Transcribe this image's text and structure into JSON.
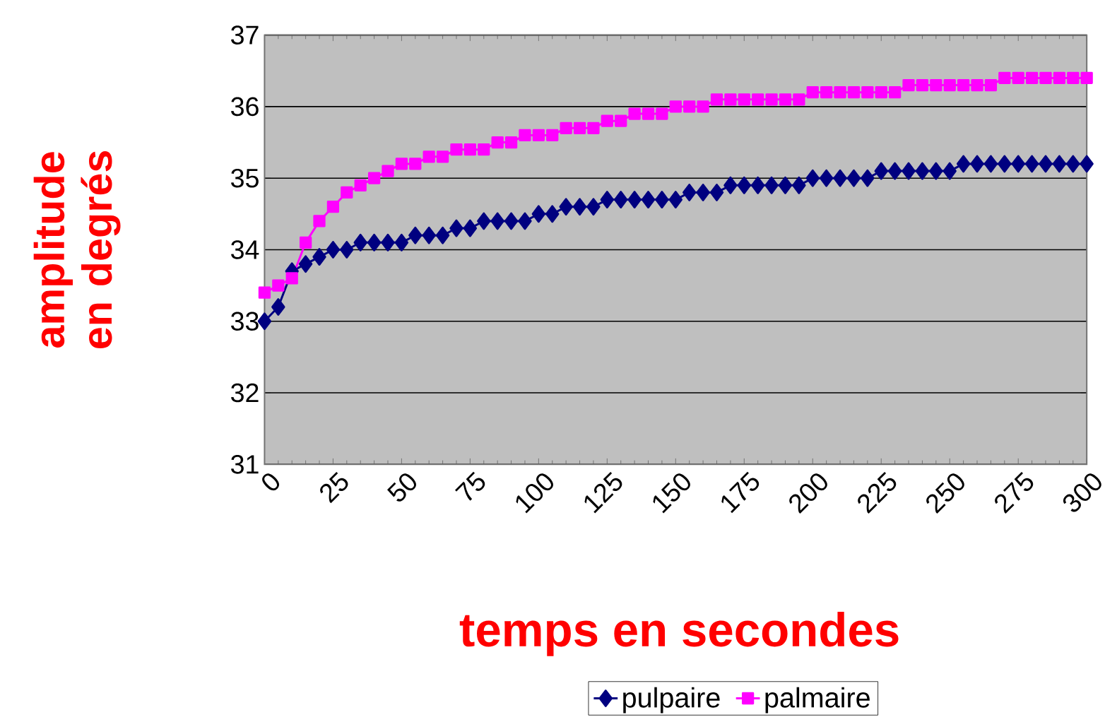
{
  "chart_data": {
    "type": "line",
    "xlabel": "temps en secondes",
    "ylabel": "amplitude en degrés",
    "x": [
      0,
      5,
      10,
      15,
      20,
      25,
      30,
      35,
      40,
      45,
      50,
      55,
      60,
      65,
      70,
      75,
      80,
      85,
      90,
      95,
      100,
      105,
      110,
      115,
      120,
      125,
      130,
      135,
      140,
      145,
      150,
      155,
      160,
      165,
      170,
      175,
      180,
      185,
      190,
      195,
      200,
      205,
      210,
      215,
      220,
      225,
      230,
      235,
      240,
      245,
      250,
      255,
      260,
      265,
      270,
      275,
      280,
      285,
      290,
      295,
      300
    ],
    "series": [
      {
        "name": "pulpaire",
        "color": "#000080",
        "values": [
          33.0,
          33.2,
          33.7,
          33.8,
          33.9,
          34.0,
          34.0,
          34.1,
          34.1,
          34.1,
          34.1,
          34.2,
          34.2,
          34.2,
          34.3,
          34.3,
          34.4,
          34.4,
          34.4,
          34.4,
          34.5,
          34.5,
          34.6,
          34.6,
          34.6,
          34.7,
          34.7,
          34.7,
          34.7,
          34.7,
          34.7,
          34.8,
          34.8,
          34.8,
          34.9,
          34.9,
          34.9,
          34.9,
          34.9,
          34.9,
          35.0,
          35.0,
          35.0,
          35.0,
          35.0,
          35.1,
          35.1,
          35.1,
          35.1,
          35.1,
          35.1,
          35.2,
          35.2,
          35.2,
          35.2,
          35.2,
          35.2,
          35.2,
          35.2,
          35.2,
          35.2
        ]
      },
      {
        "name": "palmaire",
        "color": "#ff00ff",
        "marker": "square",
        "values": [
          33.4,
          33.5,
          33.6,
          34.1,
          34.4,
          34.6,
          34.8,
          34.9,
          35.0,
          35.1,
          35.2,
          35.2,
          35.3,
          35.3,
          35.4,
          35.4,
          35.4,
          35.5,
          35.5,
          35.6,
          35.6,
          35.6,
          35.7,
          35.7,
          35.7,
          35.8,
          35.8,
          35.9,
          35.9,
          35.9,
          36.0,
          36.0,
          36.0,
          36.1,
          36.1,
          36.1,
          36.1,
          36.1,
          36.1,
          36.1,
          36.2,
          36.2,
          36.2,
          36.2,
          36.2,
          36.2,
          36.2,
          36.3,
          36.3,
          36.3,
          36.3,
          36.3,
          36.3,
          36.3,
          36.4,
          36.4,
          36.4,
          36.4,
          36.4,
          36.4,
          36.4
        ]
      }
    ],
    "xlim": [
      0,
      300
    ],
    "xticks": [
      0,
      25,
      50,
      75,
      100,
      125,
      150,
      175,
      200,
      225,
      250,
      275,
      300
    ],
    "ylim": [
      31,
      37
    ],
    "yticks": [
      31,
      32,
      33,
      34,
      35,
      36,
      37
    ],
    "grid": "y",
    "legend": "bottom",
    "line_style": "solid",
    "marker": "diamond"
  }
}
